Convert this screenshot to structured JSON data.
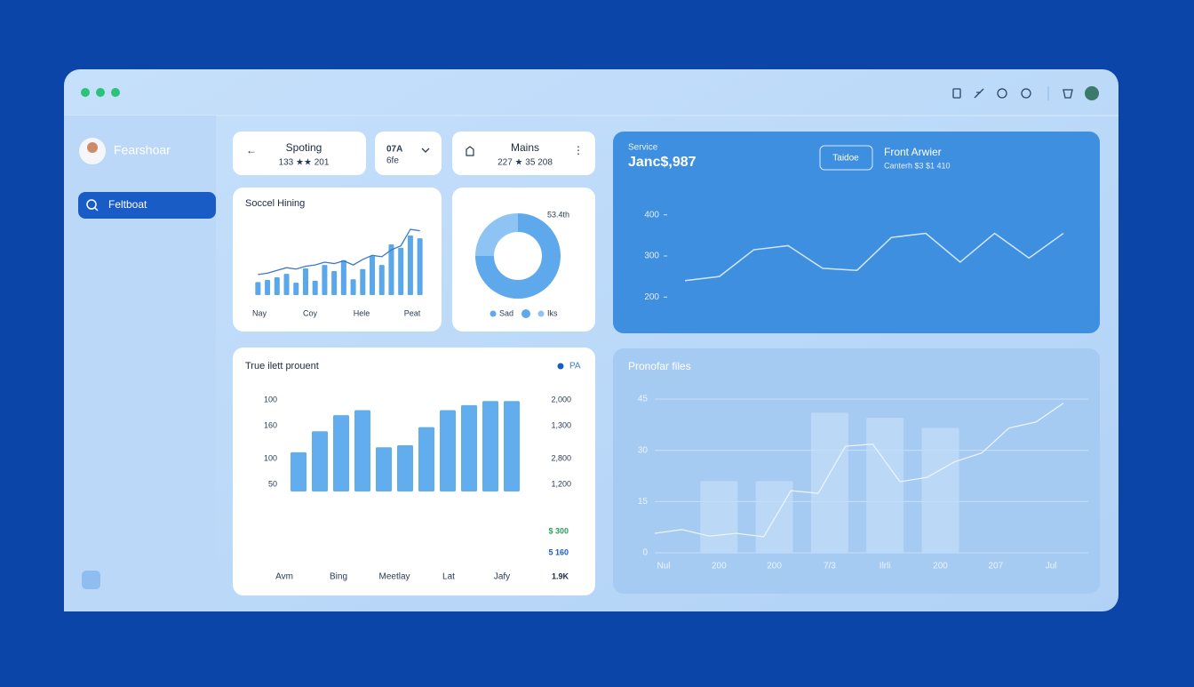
{
  "window": {
    "app_name": "Fearshoar",
    "nav_item": "Feltboat"
  },
  "cards": [
    {
      "title": "Spoting",
      "subtitle": "133 ★★ 201"
    },
    {
      "title": "07A",
      "subtitle": "6fe"
    },
    {
      "title": "Mains",
      "subtitle": "227 ★ 35 208"
    }
  ],
  "chart_data": [
    {
      "type": "bar_line",
      "title": "Soccel Hining",
      "x_labels": [
        "Nay",
        "Coy",
        "Hele",
        "Peat"
      ],
      "values": [
        19,
        22,
        26,
        31,
        18,
        39,
        21,
        44,
        35,
        51,
        23,
        38,
        57,
        44,
        74,
        69,
        87,
        83
      ],
      "line_values": [
        30,
        32,
        36,
        40,
        38,
        42,
        44,
        48,
        46,
        50,
        44,
        52,
        58,
        56,
        66,
        72,
        96,
        94
      ],
      "ylim": [
        0,
        100
      ],
      "color": "#5aa7ea",
      "line_color": "#3a78c8"
    },
    {
      "type": "donut",
      "label": "53.4th",
      "categories": [
        "Sad",
        "Iks"
      ],
      "values": [
        75,
        25
      ],
      "colors": [
        "#5ea8ec",
        "#8ec4f3"
      ]
    },
    {
      "type": "bar",
      "title": "True ilett prouent",
      "legend": "PA",
      "x_labels": [
        "Avm",
        "Bing",
        "Meetlay",
        "Lat",
        "Jafy"
      ],
      "values": [
        39,
        60,
        76,
        81,
        44,
        46,
        64,
        81,
        86,
        90,
        90
      ],
      "ylim": [
        0,
        100
      ],
      "color": "#62adee",
      "y_labels": [
        "100",
        "160",
        "100",
        "50"
      ],
      "y2_labels": [
        "2,000",
        "1,300",
        "2,800",
        "1,200"
      ],
      "side_stats": [
        "$ 300",
        "5 160",
        "1.9K"
      ]
    },
    {
      "type": "line",
      "caption": "Service",
      "value": "Janc$,987",
      "button": "Taidoe",
      "heading": "Front Arwier",
      "subheading": "Canterh $3 $1 410",
      "values": [
        240,
        250,
        315,
        325,
        270,
        265,
        345,
        355,
        285,
        355,
        295,
        355
      ],
      "ylim": [
        140,
        460
      ],
      "yticks": [
        400,
        300,
        200
      ],
      "color": "#d3e7fc"
    },
    {
      "type": "bar_line",
      "title": "Pronofar files",
      "categories": [
        "Nul",
        "200",
        "200",
        "7/3",
        "Ilrli",
        "200",
        "207",
        "Jul"
      ],
      "values": [
        null,
        21,
        21,
        41,
        39.5,
        36.5,
        null,
        null
      ],
      "line_values": [
        5.7,
        6.8,
        4.9,
        5.7,
        4.7,
        18.2,
        17.4,
        31.2,
        31.8,
        20.8,
        22.1,
        26.6,
        29.2,
        36.5,
        38.3,
        43.8
      ],
      "ylim": [
        0,
        45
      ],
      "yticks": [
        45,
        30,
        15,
        0
      ],
      "grid": true,
      "color": "#c4ddf8",
      "line_color": "#eef6fe"
    }
  ]
}
